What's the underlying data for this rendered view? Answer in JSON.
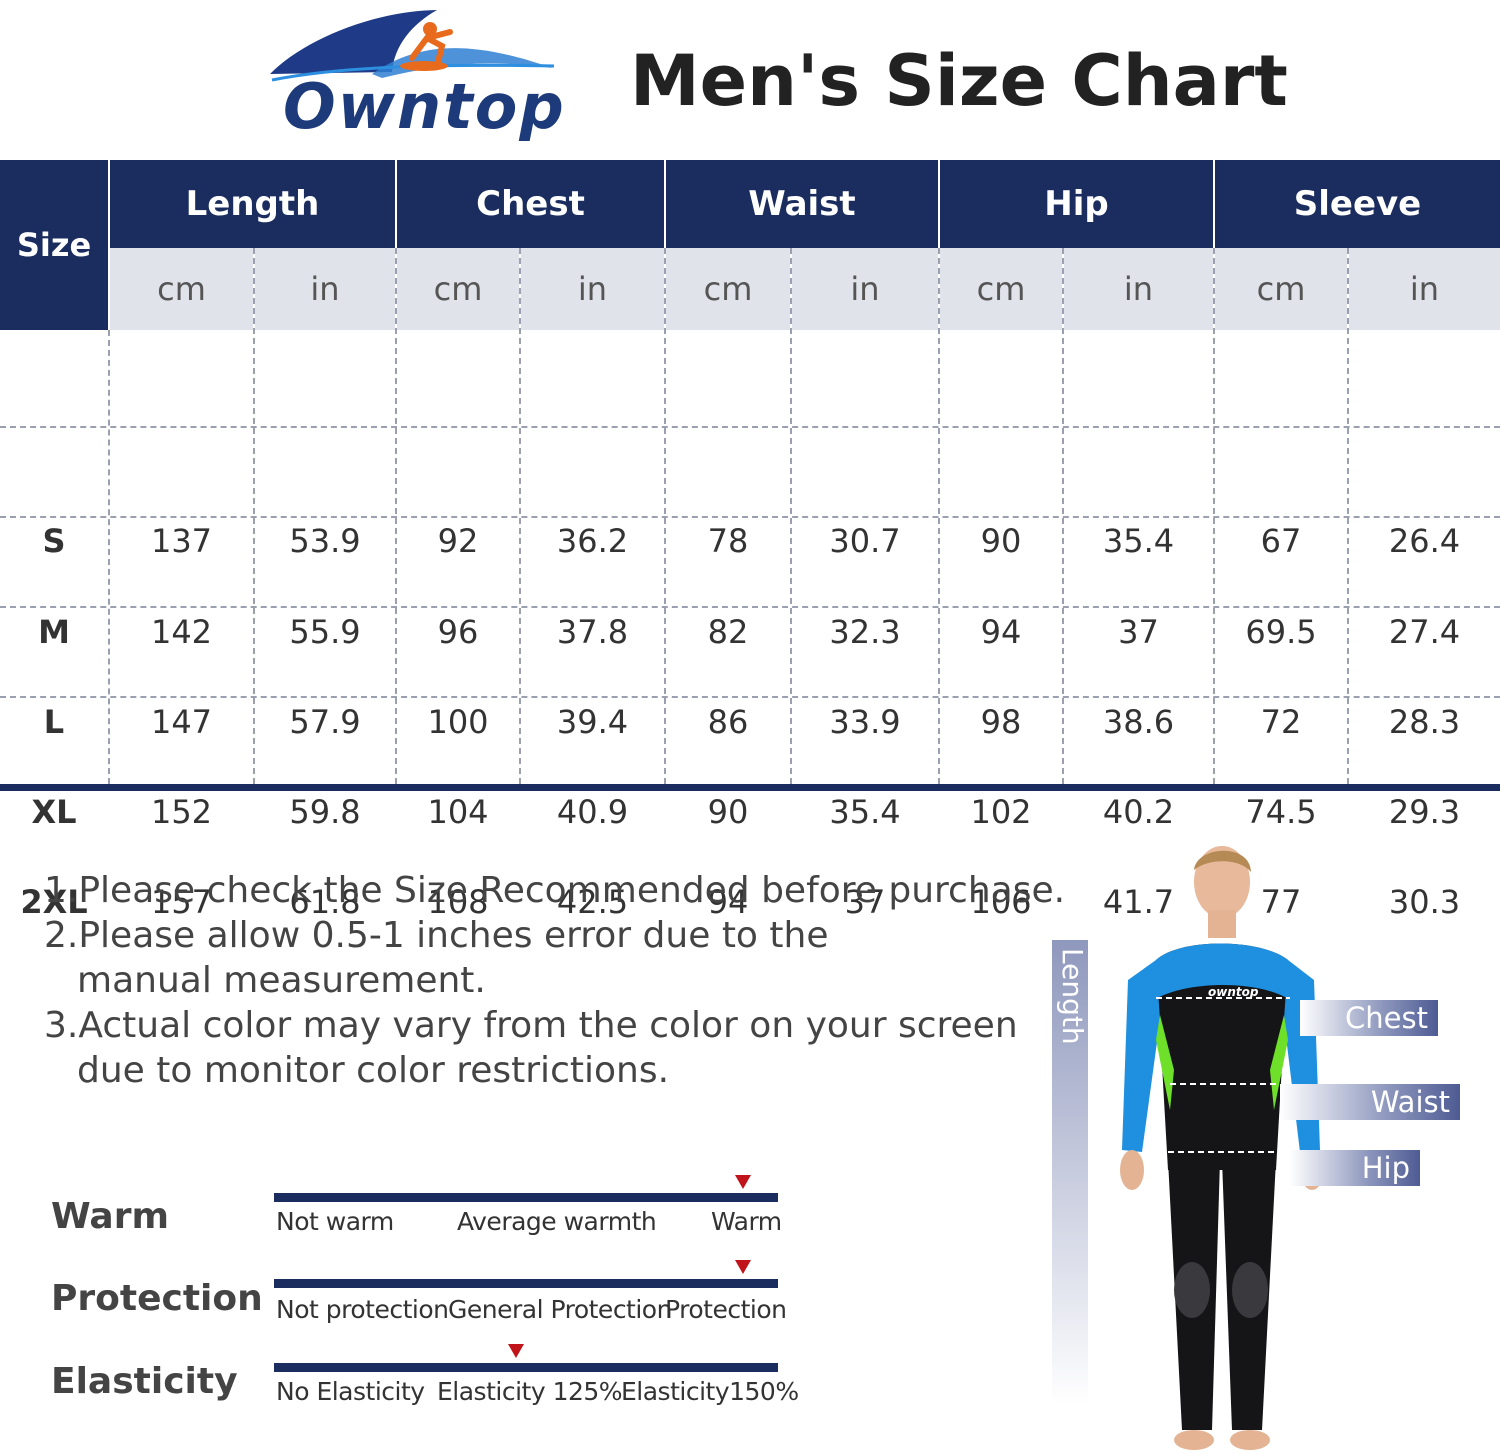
{
  "brand": {
    "name": "Owntop"
  },
  "title": "Men's Size Chart",
  "table": {
    "size_header": "Size",
    "groups": [
      "Length",
      "Chest",
      "Waist",
      "Hip",
      "Sleeve"
    ],
    "units": [
      "cm",
      "in",
      "cm",
      "in",
      "cm",
      "in",
      "cm",
      "in",
      "cm",
      "in"
    ],
    "rows": [
      {
        "size": "S",
        "values": [
          "137",
          "53.9",
          "92",
          "36.2",
          "78",
          "30.7",
          "90",
          "35.4",
          "67",
          "26.4"
        ]
      },
      {
        "size": "M",
        "values": [
          "142",
          "55.9",
          "96",
          "37.8",
          "82",
          "32.3",
          "94",
          "37",
          "69.5",
          "27.4"
        ]
      },
      {
        "size": "L",
        "values": [
          "147",
          "57.9",
          "100",
          "39.4",
          "86",
          "33.9",
          "98",
          "38.6",
          "72",
          "28.3"
        ]
      },
      {
        "size": "XL",
        "values": [
          "152",
          "59.8",
          "104",
          "40.9",
          "90",
          "35.4",
          "102",
          "40.2",
          "74.5",
          "29.3"
        ]
      },
      {
        "size": "2XL",
        "values": [
          "157",
          "61.8",
          "108",
          "42.5",
          "94",
          "37",
          "106",
          "41.7",
          "77",
          "30.3"
        ]
      }
    ]
  },
  "notes": [
    {
      "line1": "1.Please check the Size Recommended before purchase.",
      "line2": ""
    },
    {
      "line1": "2.Please allow 0.5-1 inches error due to the",
      "line2": "manual measurement."
    },
    {
      "line1": "3.Actual color may vary from the color on your screen",
      "line2": "due to monitor color restrictions."
    }
  ],
  "ratings": [
    {
      "label": "Warm",
      "scale": [
        "Not warm",
        "Average warmth",
        "Warm"
      ],
      "level": 0.93
    },
    {
      "label": "Protection",
      "scale": [
        "Not protection",
        "General Protection",
        "Protection"
      ],
      "level": 0.93
    },
    {
      "label": "Elasticity",
      "scale": [
        "No Elasticity",
        "Elasticity 125%",
        "Elasticity150%"
      ],
      "level": 0.48
    }
  ],
  "figure": {
    "length_label": "Length",
    "chest_label": "Chest",
    "waist_label": "Waist",
    "hip_label": "Hip",
    "suit_logo": "owntop"
  },
  "colors": {
    "navy": "#1b2d5e",
    "unit_bg": "#e1e3eb",
    "marker": "#c0141a",
    "suit_blue": "#1f8fe0",
    "suit_green": "#6ee02a"
  }
}
